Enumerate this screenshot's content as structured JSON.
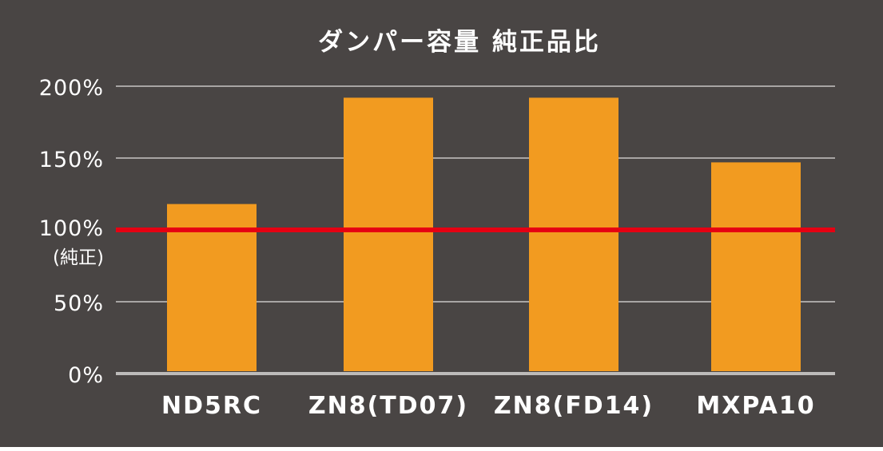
{
  "chart_data": {
    "type": "bar",
    "title": "ダンパー容量 純正品比",
    "categories": [
      "ND5RC",
      "ZN8(TD07)",
      "ZN8(FD14)",
      "MXPA10"
    ],
    "values": [
      118,
      192,
      192,
      147
    ],
    "unit": "%",
    "ylim": [
      0,
      200
    ],
    "y_ticks": [
      {
        "value": 0,
        "label": "0%"
      },
      {
        "value": 50,
        "label": "50%"
      },
      {
        "value": 100,
        "label": "100%",
        "sublabel": "(純正)"
      },
      {
        "value": 150,
        "label": "150%"
      },
      {
        "value": 200,
        "label": "200%"
      }
    ],
    "reference_line": {
      "value": 100,
      "color": "#e60012"
    },
    "grid": true,
    "legend": "none",
    "colors": {
      "background": "#494544",
      "bar": "#f29b20",
      "grid": "#a8a5a4",
      "text": "#ffffff",
      "baseline": "#bdbbba"
    }
  }
}
